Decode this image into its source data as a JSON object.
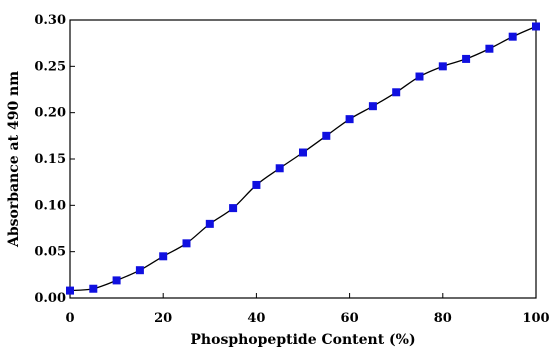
{
  "chart_data": {
    "type": "scatter",
    "xlabel": "Phosphopeptide Content (%)",
    "ylabel": "Absorbance at 490 nm",
    "xlim": [
      0,
      100
    ],
    "ylim": [
      0,
      0.3
    ],
    "x_ticks": [
      0,
      20,
      40,
      60,
      80,
      100
    ],
    "x_tick_labels": [
      "0",
      "20",
      "40",
      "60",
      "80",
      "100"
    ],
    "y_ticks": [
      0,
      0.05,
      0.1,
      0.15,
      0.2,
      0.25,
      0.3
    ],
    "y_tick_labels": [
      "0.00",
      "0.05",
      "0.10",
      "0.15",
      "0.20",
      "0.25",
      "0.30"
    ],
    "grid": false,
    "legend": "none",
    "marker_color": "#1010e0",
    "fit_line_color": "#000000",
    "series": [
      {
        "x": [
          0,
          5,
          10,
          15,
          20,
          25,
          30,
          35,
          40,
          45,
          50,
          55,
          60,
          65,
          70,
          75,
          80,
          85,
          90,
          95,
          100
        ],
        "values": [
          0.008,
          0.01,
          0.019,
          0.03,
          0.045,
          0.059,
          0.08,
          0.097,
          0.122,
          0.14,
          0.157,
          0.175,
          0.193,
          0.207,
          0.222,
          0.239,
          0.25,
          0.258,
          0.269,
          0.282,
          0.293
        ],
        "marker": "square",
        "fit_line": true
      }
    ]
  }
}
